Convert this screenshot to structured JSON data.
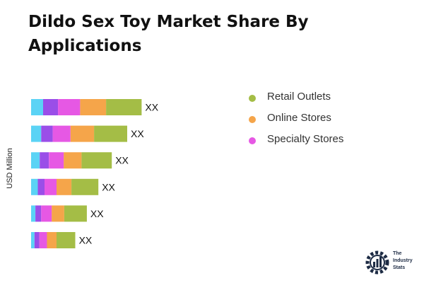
{
  "title": "Dildo Sex Toy Market Share By Applications",
  "colors": {
    "segments": [
      "#5bd3f5",
      "#9a4ee8",
      "#e658e4",
      "#f5a54a",
      "#a4bd46"
    ],
    "text": "#111111"
  },
  "chart_data": {
    "type": "bar",
    "orientation": "horizontal",
    "stacked": true,
    "ylabel": "USD Million",
    "xlabel": "",
    "grid": false,
    "legend_position": "right",
    "categories": [
      "",
      "",
      "",
      "",
      "",
      ""
    ],
    "bar_labels": [
      "XX",
      "XX",
      "XX",
      "XX",
      "XX",
      "XX"
    ],
    "series": [
      {
        "name": "",
        "color": "#5bd3f5",
        "values": [
          25,
          21,
          18,
          14,
          9,
          7
        ]
      },
      {
        "name": "",
        "color": "#9a4ee8",
        "values": [
          31,
          24,
          19,
          14,
          12,
          10
        ]
      },
      {
        "name": "Specialty Stores",
        "color": "#e658e4",
        "values": [
          46,
          37,
          31,
          25,
          22,
          16
        ]
      },
      {
        "name": "Online Stores",
        "color": "#f5a54a",
        "values": [
          54,
          49,
          37,
          31,
          26,
          20
        ]
      },
      {
        "name": "Retail Outlets",
        "color": "#a4bd46",
        "values": [
          74,
          69,
          63,
          56,
          47,
          39
        ]
      }
    ]
  },
  "legend": [
    {
      "label": "Retail Outlets",
      "color": "#a4bd46"
    },
    {
      "label": "Online Stores",
      "color": "#f5a54a"
    },
    {
      "label": "Specialty Stores",
      "color": "#e658e4"
    }
  ],
  "logo": {
    "lines": [
      "The",
      "Industry",
      "Stats"
    ],
    "icon": "gear-bars-logo-icon"
  }
}
